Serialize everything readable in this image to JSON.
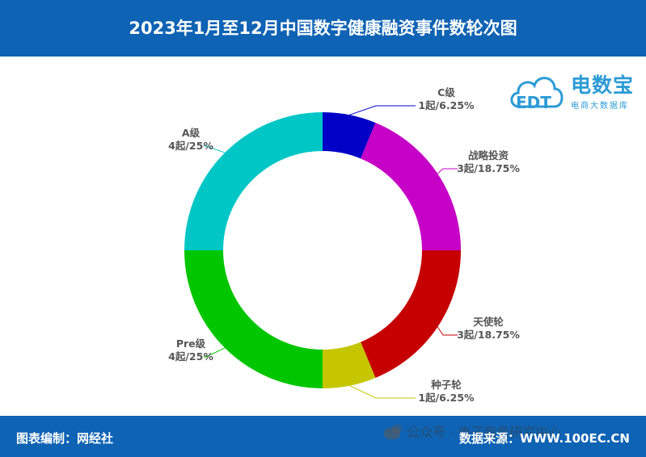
{
  "header": {
    "title": "2023年1月至12月中国数字健康融资事件数轮次图"
  },
  "footer": {
    "left": "图表编制：网经社",
    "right": "数据来源：WWW.100EC.CN",
    "watermark": "公众号 · 电子商务研究中心"
  },
  "logo": {
    "main": "电数宝",
    "sub": "电商大数据库",
    "mark": "EDT"
  },
  "colors": {
    "bar": "#0e63b4",
    "logo": "#2c9bd6"
  },
  "chart_data": {
    "type": "pie",
    "donut": true,
    "title": "2023年1月至12月中国数字健康融资事件数轮次图",
    "start_angle_deg": 0,
    "direction": "clockwise",
    "slices": [
      {
        "label": "C级",
        "count": 1,
        "value_text": "1起/6.25%",
        "percent": 6.25,
        "color": "#0000c6"
      },
      {
        "label": "战略投资",
        "count": 3,
        "value_text": "3起/18.75%",
        "percent": 18.75,
        "color": "#c600c6"
      },
      {
        "label": "天使轮",
        "count": 3,
        "value_text": "3起/18.75%",
        "percent": 18.75,
        "color": "#c60000"
      },
      {
        "label": "种子轮",
        "count": 1,
        "value_text": "1起/6.25%",
        "percent": 6.25,
        "color": "#c6c600"
      },
      {
        "label": "Pre级",
        "count": 4,
        "value_text": "4起/25%",
        "percent": 25,
        "color": "#00c600"
      },
      {
        "label": "A级",
        "count": 4,
        "value_text": "4起/25%",
        "percent": 25,
        "color": "#00c6c6"
      }
    ]
  }
}
